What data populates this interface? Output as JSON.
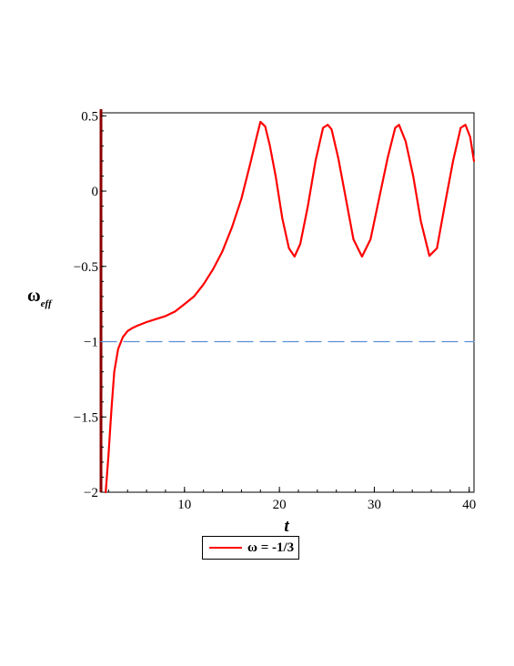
{
  "chart_data": {
    "type": "line",
    "xlabel": "t",
    "ylabel": "ω",
    "ylabel_subscript": "eff",
    "xlim": [
      1.2,
      40.5
    ],
    "ylim": [
      -2,
      0.52
    ],
    "x_ticks": [
      10,
      20,
      30,
      40
    ],
    "y_ticks": [
      0.5,
      0,
      -0.5,
      -1,
      -1.5,
      -2
    ],
    "x_tick_labels": [
      "10",
      "20",
      "30",
      "40"
    ],
    "y_tick_labels": [
      "0.5",
      "0",
      "−0.5",
      "−1",
      "−1.5",
      "−2"
    ],
    "grid": false,
    "legend_position": "bottom-center",
    "series": [
      {
        "name": "ω = -1/3",
        "color": "#ff0000",
        "style": "solid",
        "x": [
          1.7,
          2.0,
          2.3,
          2.6,
          3.0,
          3.5,
          4.0,
          4.5,
          5.0,
          6.0,
          7.0,
          8.0,
          9.0,
          10.0,
          11.0,
          12.0,
          13.0,
          14.0,
          15.0,
          16.0,
          17.0,
          17.6,
          18.0,
          18.5,
          19.0,
          19.6,
          20.3,
          21.0,
          21.6,
          22.2,
          23.0,
          23.8,
          24.6,
          25.1,
          25.5,
          26.2,
          27.0,
          27.8,
          28.7,
          29.6,
          30.5,
          31.4,
          32.2,
          32.6,
          33.3,
          34.1,
          34.9,
          35.8,
          36.6,
          37.4,
          38.3,
          39.1,
          39.6,
          40.1,
          40.5
        ],
        "y": [
          -2.0,
          -1.75,
          -1.45,
          -1.2,
          -1.05,
          -0.97,
          -0.93,
          -0.91,
          -0.895,
          -0.87,
          -0.85,
          -0.83,
          -0.8,
          -0.75,
          -0.7,
          -0.62,
          -0.52,
          -0.4,
          -0.24,
          -0.05,
          0.2,
          0.36,
          0.46,
          0.43,
          0.3,
          0.1,
          -0.18,
          -0.38,
          -0.435,
          -0.35,
          -0.1,
          0.2,
          0.42,
          0.44,
          0.41,
          0.22,
          -0.05,
          -0.32,
          -0.435,
          -0.32,
          -0.05,
          0.22,
          0.42,
          0.44,
          0.33,
          0.1,
          -0.2,
          -0.43,
          -0.38,
          -0.1,
          0.2,
          0.42,
          0.44,
          0.36,
          0.2
        ]
      },
      {
        "name": "",
        "color": "#5b8fd6",
        "style": "dashed",
        "x": [
          1.2,
          40.5
        ],
        "y": [
          -1,
          -1
        ]
      }
    ]
  },
  "legend": {
    "label": "ω = -1/3",
    "color": "#ff0000"
  }
}
